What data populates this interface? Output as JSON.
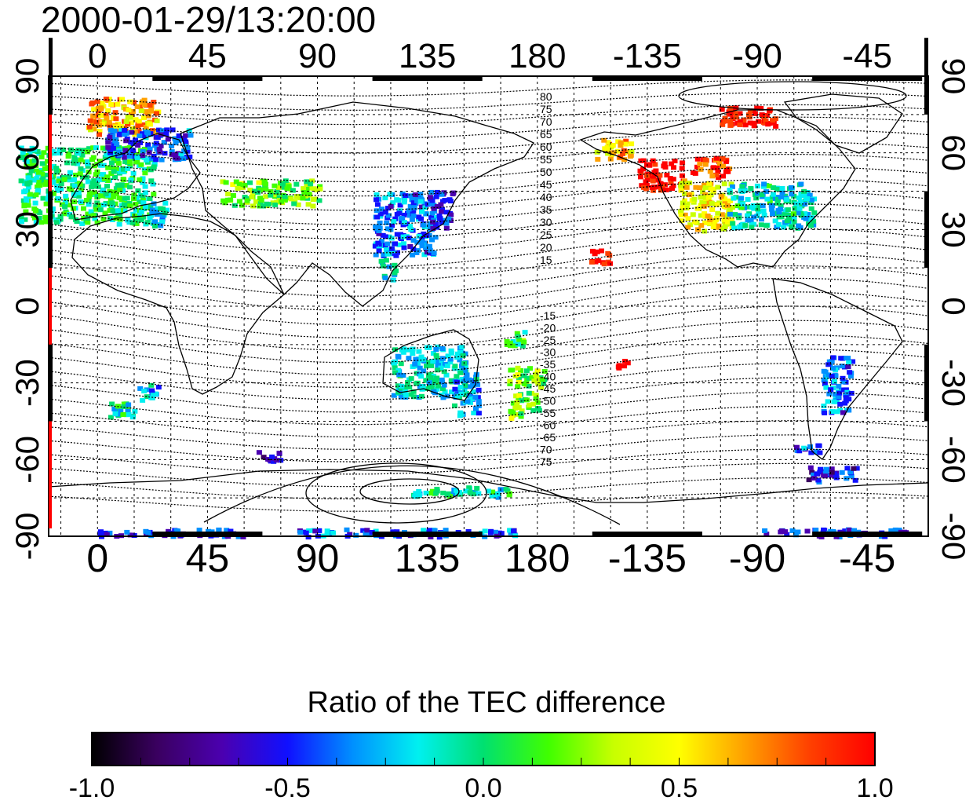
{
  "timestamp": "2000-01-29/13:20:00",
  "map": {
    "top_lon_labels": [
      "0",
      "45",
      "90",
      "135",
      "180",
      "-135",
      "-90",
      "-45"
    ],
    "bottom_lon_labels": [
      "0",
      "45",
      "90",
      "135",
      "180",
      "-135",
      "-90",
      "-45"
    ],
    "left_lat_labels": [
      "90",
      "60",
      "30",
      "0",
      "-30",
      "-60",
      "-90"
    ],
    "right_lat_labels": [
      "90",
      "60",
      "30",
      "0",
      "-30",
      "-60",
      "-90"
    ],
    "lon_values": [
      0,
      45,
      90,
      135,
      180,
      225,
      270,
      315
    ],
    "lat_values": [
      90,
      60,
      30,
      0,
      -30,
      -60,
      -90
    ],
    "north_contour_labels": [
      "80",
      "75",
      "70",
      "65",
      "60",
      "55",
      "50",
      "45",
      "40",
      "35",
      "30",
      "25",
      "20",
      "15"
    ],
    "south_contour_labels": [
      "-15",
      "-20",
      "-25",
      "-30",
      "-35",
      "-40",
      "-45",
      "-50",
      "-55",
      "-60",
      "-65",
      "70",
      "75"
    ],
    "projection": "equirectangular, centre longitude 180",
    "grid": true
  },
  "colorbar": {
    "title": "Ratio of the TEC difference",
    "ticks": [
      "-1.0",
      "-0.5",
      "0.0",
      "0.5",
      "1.0"
    ],
    "tick_values": [
      -1.0,
      -0.5,
      0.0,
      0.5,
      1.0
    ],
    "range": [
      -1.0,
      1.0
    ],
    "colors": [
      "#000000",
      "#3a0060",
      "#4b00b0",
      "#1010ff",
      "#0090ff",
      "#00f0f0",
      "#00e070",
      "#40ff00",
      "#c8ff00",
      "#ffff00",
      "#ffa000",
      "#ff4000",
      "#ff0000"
    ]
  },
  "data_regions": [
    {
      "lon": -5,
      "lat": 48,
      "w": 55,
      "h": 30,
      "v": 0.0
    },
    {
      "lon": 10,
      "lat": 75,
      "w": 30,
      "h": 14,
      "v": 0.6
    },
    {
      "lon": 20,
      "lat": 64,
      "w": 35,
      "h": 12,
      "v": -0.45
    },
    {
      "lon": 25,
      "lat": 37,
      "w": 8,
      "h": 10,
      "v": -0.2
    },
    {
      "lon": 70,
      "lat": 45,
      "w": 40,
      "h": 10,
      "v": 0.2
    },
    {
      "lon": 125,
      "lat": 33,
      "w": 25,
      "h": 25,
      "v": -0.35
    },
    {
      "lon": 140,
      "lat": 38,
      "w": 10,
      "h": 15,
      "v": -0.5
    },
    {
      "lon": 118,
      "lat": 15,
      "w": 6,
      "h": 8,
      "v": -0.2
    },
    {
      "lon": 135,
      "lat": -25,
      "w": 30,
      "h": 20,
      "v": -0.15
    },
    {
      "lon": 150,
      "lat": -33,
      "w": 10,
      "h": 18,
      "v": -0.3
    },
    {
      "lon": 174,
      "lat": -38,
      "w": 12,
      "h": 10,
      "v": 0.2
    },
    {
      "lon": 175,
      "lat": -27,
      "w": 15,
      "h": 8,
      "v": 0.25
    },
    {
      "lon": 170,
      "lat": -12,
      "w": 8,
      "h": 6,
      "v": 0.1
    },
    {
      "lon": 148,
      "lat": -72,
      "w": 40,
      "h": 4,
      "v": -0.1
    },
    {
      "lon": 10,
      "lat": -40,
      "w": 12,
      "h": 6,
      "v": -0.1
    },
    {
      "lon": 20,
      "lat": -33,
      "w": 8,
      "h": 6,
      "v": -0.3
    },
    {
      "lon": -155,
      "lat": 20,
      "w": 8,
      "h": 6,
      "v": 1.0
    },
    {
      "lon": -146,
      "lat": -22,
      "w": 4,
      "h": 3,
      "v": 1.0
    },
    {
      "lon": -130,
      "lat": 52,
      "w": 18,
      "h": 12,
      "v": 1.0
    },
    {
      "lon": -112,
      "lat": 40,
      "w": 22,
      "h": 20,
      "v": 0.5
    },
    {
      "lon": -85,
      "lat": 40,
      "w": 35,
      "h": 18,
      "v": -0.15
    },
    {
      "lon": -110,
      "lat": 55,
      "w": 15,
      "h": 8,
      "v": 0.9
    },
    {
      "lon": -95,
      "lat": 75,
      "w": 25,
      "h": 8,
      "v": 1.0
    },
    {
      "lon": -150,
      "lat": 62,
      "w": 15,
      "h": 8,
      "v": 0.6
    },
    {
      "lon": -58,
      "lat": -30,
      "w": 12,
      "h": 22,
      "v": -0.35
    },
    {
      "lon": -60,
      "lat": -65,
      "w": 20,
      "h": 6,
      "v": -0.55
    },
    {
      "lon": -70,
      "lat": -55,
      "w": 10,
      "h": 4,
      "v": -0.4
    },
    {
      "lon": 70,
      "lat": -58,
      "w": 10,
      "h": 4,
      "v": -0.55
    },
    {
      "lon": 30,
      "lat": -88,
      "w": 60,
      "h": 3,
      "v": -0.5
    },
    {
      "lon": 125,
      "lat": -88,
      "w": 90,
      "h": 3,
      "v": -0.4
    },
    {
      "lon": -60,
      "lat": -88,
      "w": 60,
      "h": 3,
      "v": -0.5
    }
  ]
}
